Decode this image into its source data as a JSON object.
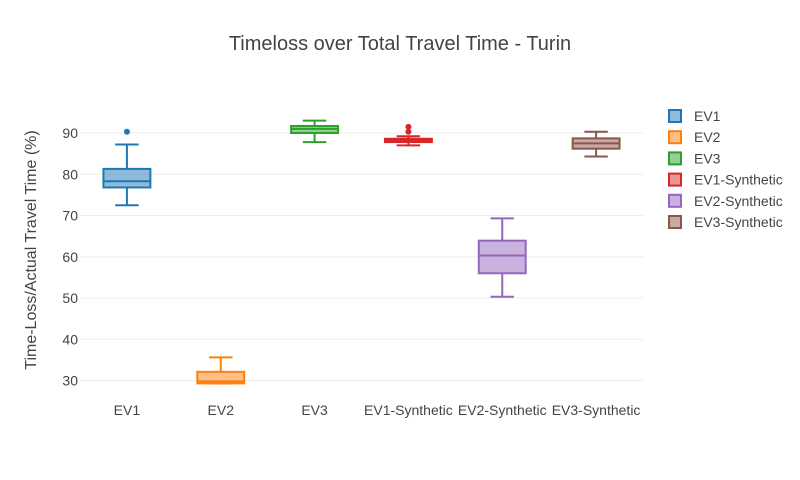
{
  "chart_data": {
    "type": "box",
    "title": "Timeloss over Total Travel Time - Turin",
    "xlabel": "",
    "ylabel": "Time-Loss/Actual Travel Time (%)",
    "ylim": [
      26,
      98
    ],
    "yticks": [
      30,
      40,
      50,
      60,
      70,
      80,
      90
    ],
    "grid": true,
    "legend_position": "right",
    "categories": [
      "EV1",
      "EV2",
      "EV3",
      "EV1-Synthetic",
      "EV2-Synthetic",
      "EV3-Synthetic"
    ],
    "series": [
      {
        "name": "EV1",
        "color": "#1f77b4",
        "whisker_low": 72.5,
        "q1": 76.8,
        "median": 78.3,
        "q3": 81.3,
        "whisker_high": 87.2,
        "outliers": [
          90.3
        ]
      },
      {
        "name": "EV2",
        "color": "#ff7f0e",
        "whisker_low": 29.3,
        "q1": 29.3,
        "median": 29.8,
        "q3": 32.1,
        "whisker_high": 35.6,
        "outliers": []
      },
      {
        "name": "EV3",
        "color": "#2ca02c",
        "whisker_low": 87.8,
        "q1": 90.0,
        "median": 91.0,
        "q3": 91.7,
        "whisker_high": 93.0,
        "outliers": []
      },
      {
        "name": "EV1-Synthetic",
        "color": "#d62728",
        "whisker_low": 87.0,
        "q1": 87.8,
        "median": 88.2,
        "q3": 88.6,
        "whisker_high": 89.2,
        "outliers": [
          90.3,
          91.5
        ]
      },
      {
        "name": "EV2-Synthetic",
        "color": "#9467bd",
        "whisker_low": 50.3,
        "q1": 56.0,
        "median": 60.3,
        "q3": 63.9,
        "whisker_high": 69.3,
        "outliers": []
      },
      {
        "name": "EV3-Synthetic",
        "color": "#8c564b",
        "whisker_low": 84.3,
        "q1": 86.2,
        "median": 87.5,
        "q3": 88.7,
        "whisker_high": 90.3,
        "outliers": []
      }
    ]
  }
}
